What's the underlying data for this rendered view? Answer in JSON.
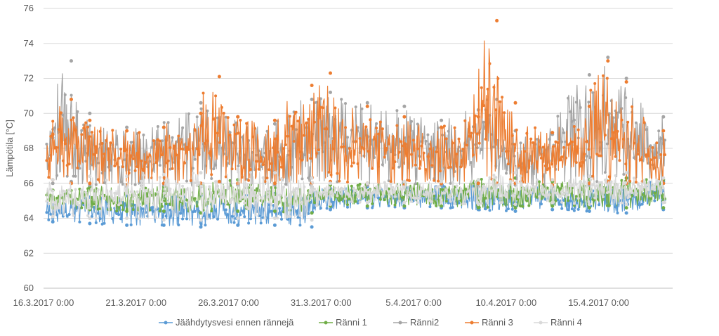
{
  "chart_data": {
    "type": "line",
    "title": "",
    "ylabel": "Lämpötila [°C]",
    "xlabel": "",
    "ylim": [
      60,
      76
    ],
    "yticks": [
      60,
      62,
      64,
      66,
      68,
      70,
      72,
      74,
      76
    ],
    "xlim": [
      "2017-03-16",
      "2017-04-19"
    ],
    "xticks": [
      {
        "date": "2017-03-16",
        "label": "16.3.2017 0:00"
      },
      {
        "date": "2017-03-21",
        "label": "21.3.2017 0:00"
      },
      {
        "date": "2017-03-26",
        "label": "26.3.2017 0:00"
      },
      {
        "date": "2017-03-31",
        "label": "31.3.2017 0:00"
      },
      {
        "date": "2017-04-05",
        "label": "5.4.2017 0:00"
      },
      {
        "date": "2017-04-10",
        "label": "10.4.2017 0:00"
      },
      {
        "date": "2017-04-15",
        "label": "15.4.2017 0:00"
      }
    ],
    "grid": true,
    "legend_position": "bottom",
    "series": [
      {
        "name": "Jäähdytysvesi ennen rännejä",
        "color": "#5B9BD5",
        "x": [
          "2017-03-16",
          "2017-03-18",
          "2017-03-20",
          "2017-03-22",
          "2017-03-24",
          "2017-03-26",
          "2017-03-28",
          "2017-03-30",
          "2017-03-31",
          "2017-04-02",
          "2017-04-04",
          "2017-04-06",
          "2017-04-08",
          "2017-04-10",
          "2017-04-12",
          "2017-04-14",
          "2017-04-16",
          "2017-04-18"
        ],
        "low": [
          63.8,
          63.7,
          63.6,
          63.6,
          63.5,
          63.6,
          63.6,
          63.5,
          64.5,
          64.6,
          64.6,
          64.6,
          64.5,
          64.4,
          64.5,
          64.4,
          64.3,
          64.5
        ],
        "high": [
          65.2,
          65.2,
          65.3,
          65.2,
          65.3,
          65.4,
          65.4,
          65.3,
          65.7,
          65.8,
          65.8,
          65.9,
          66.0,
          66.0,
          65.8,
          65.9,
          66.0,
          66.1
        ]
      },
      {
        "name": "Ränni 1",
        "color": "#70AD47",
        "x": [
          "2017-03-16",
          "2017-03-18",
          "2017-03-20",
          "2017-03-22",
          "2017-03-24",
          "2017-03-26",
          "2017-03-28",
          "2017-03-30",
          "2017-03-31",
          "2017-04-02",
          "2017-04-04",
          "2017-04-06",
          "2017-04-08",
          "2017-04-10",
          "2017-04-12",
          "2017-04-14",
          "2017-04-16",
          "2017-04-18"
        ],
        "low": [
          64.6,
          64.5,
          64.4,
          64.4,
          64.3,
          64.4,
          64.4,
          64.3,
          64.7,
          64.7,
          64.7,
          64.7,
          64.6,
          64.6,
          64.7,
          64.6,
          64.6,
          64.6
        ],
        "high": [
          65.6,
          65.8,
          65.9,
          65.8,
          65.9,
          66.2,
          66.0,
          65.7,
          65.9,
          66.0,
          66.0,
          66.1,
          66.2,
          66.3,
          66.1,
          66.2,
          66.3,
          66.2
        ]
      },
      {
        "name": "Ränni2",
        "color": "#A5A5A5",
        "x": [
          "2017-03-16",
          "2017-03-17",
          "2017-03-18",
          "2017-03-20",
          "2017-03-22",
          "2017-03-24",
          "2017-03-26",
          "2017-03-28",
          "2017-03-30",
          "2017-03-31",
          "2017-04-02",
          "2017-04-04",
          "2017-04-06",
          "2017-04-08",
          "2017-04-09",
          "2017-04-10",
          "2017-04-12",
          "2017-04-14",
          "2017-04-15",
          "2017-04-16",
          "2017-04-18"
        ],
        "low": [
          66.0,
          66.1,
          65.9,
          65.8,
          65.9,
          65.8,
          65.9,
          65.9,
          65.8,
          66.0,
          65.9,
          65.8,
          65.9,
          65.8,
          65.9,
          65.9,
          65.8,
          65.9,
          66.0,
          66.0,
          66.0
        ],
        "high": [
          68.6,
          73.0,
          70.0,
          69.2,
          69.2,
          70.6,
          69.8,
          69.4,
          70.8,
          71.2,
          70.6,
          70.4,
          69.6,
          70.2,
          70.8,
          69.0,
          68.8,
          72.2,
          73.2,
          72.0,
          69.8
        ]
      },
      {
        "name": "Ränni 3",
        "color": "#ED7D31",
        "x": [
          "2017-03-16",
          "2017-03-17",
          "2017-03-18",
          "2017-03-20",
          "2017-03-22",
          "2017-03-24",
          "2017-03-25",
          "2017-03-26",
          "2017-03-28",
          "2017-03-30",
          "2017-03-31",
          "2017-04-02",
          "2017-04-04",
          "2017-04-06",
          "2017-04-08",
          "2017-04-09",
          "2017-04-10",
          "2017-04-12",
          "2017-04-14",
          "2017-04-15",
          "2017-04-16",
          "2017-04-18"
        ],
        "low": [
          66.2,
          66.0,
          66.0,
          65.9,
          66.0,
          66.0,
          66.1,
          66.0,
          66.0,
          66.0,
          66.1,
          66.0,
          65.9,
          66.0,
          66.0,
          66.0,
          66.0,
          65.9,
          66.0,
          66.1,
          66.0,
          66.0
        ],
        "high": [
          68.8,
          70.8,
          69.6,
          69.0,
          69.2,
          70.0,
          72.1,
          69.8,
          69.6,
          71.6,
          72.3,
          70.4,
          69.8,
          69.2,
          69.8,
          75.3,
          70.6,
          68.9,
          70.4,
          73.0,
          71.8,
          69.0
        ]
      },
      {
        "name": "Ränni 4",
        "color": "#D9D9D9",
        "x": [
          "2017-03-16",
          "2017-03-18",
          "2017-03-20",
          "2017-03-22",
          "2017-03-24",
          "2017-03-26",
          "2017-03-28",
          "2017-03-30",
          "2017-03-31",
          "2017-04-02",
          "2017-04-04",
          "2017-04-06",
          "2017-04-08",
          "2017-04-10",
          "2017-04-12",
          "2017-04-14",
          "2017-04-16",
          "2017-04-18"
        ],
        "low": [
          64.1,
          64.0,
          64.0,
          63.9,
          63.9,
          64.0,
          64.0,
          63.9,
          64.8,
          64.9,
          64.9,
          64.9,
          64.8,
          64.8,
          64.9,
          64.8,
          64.8,
          64.9
        ],
        "high": [
          66.2,
          66.4,
          66.4,
          66.5,
          66.6,
          66.8,
          66.6,
          66.3,
          66.0,
          66.0,
          66.1,
          66.1,
          66.2,
          66.6,
          66.2,
          66.4,
          66.6,
          66.3
        ]
      }
    ]
  }
}
